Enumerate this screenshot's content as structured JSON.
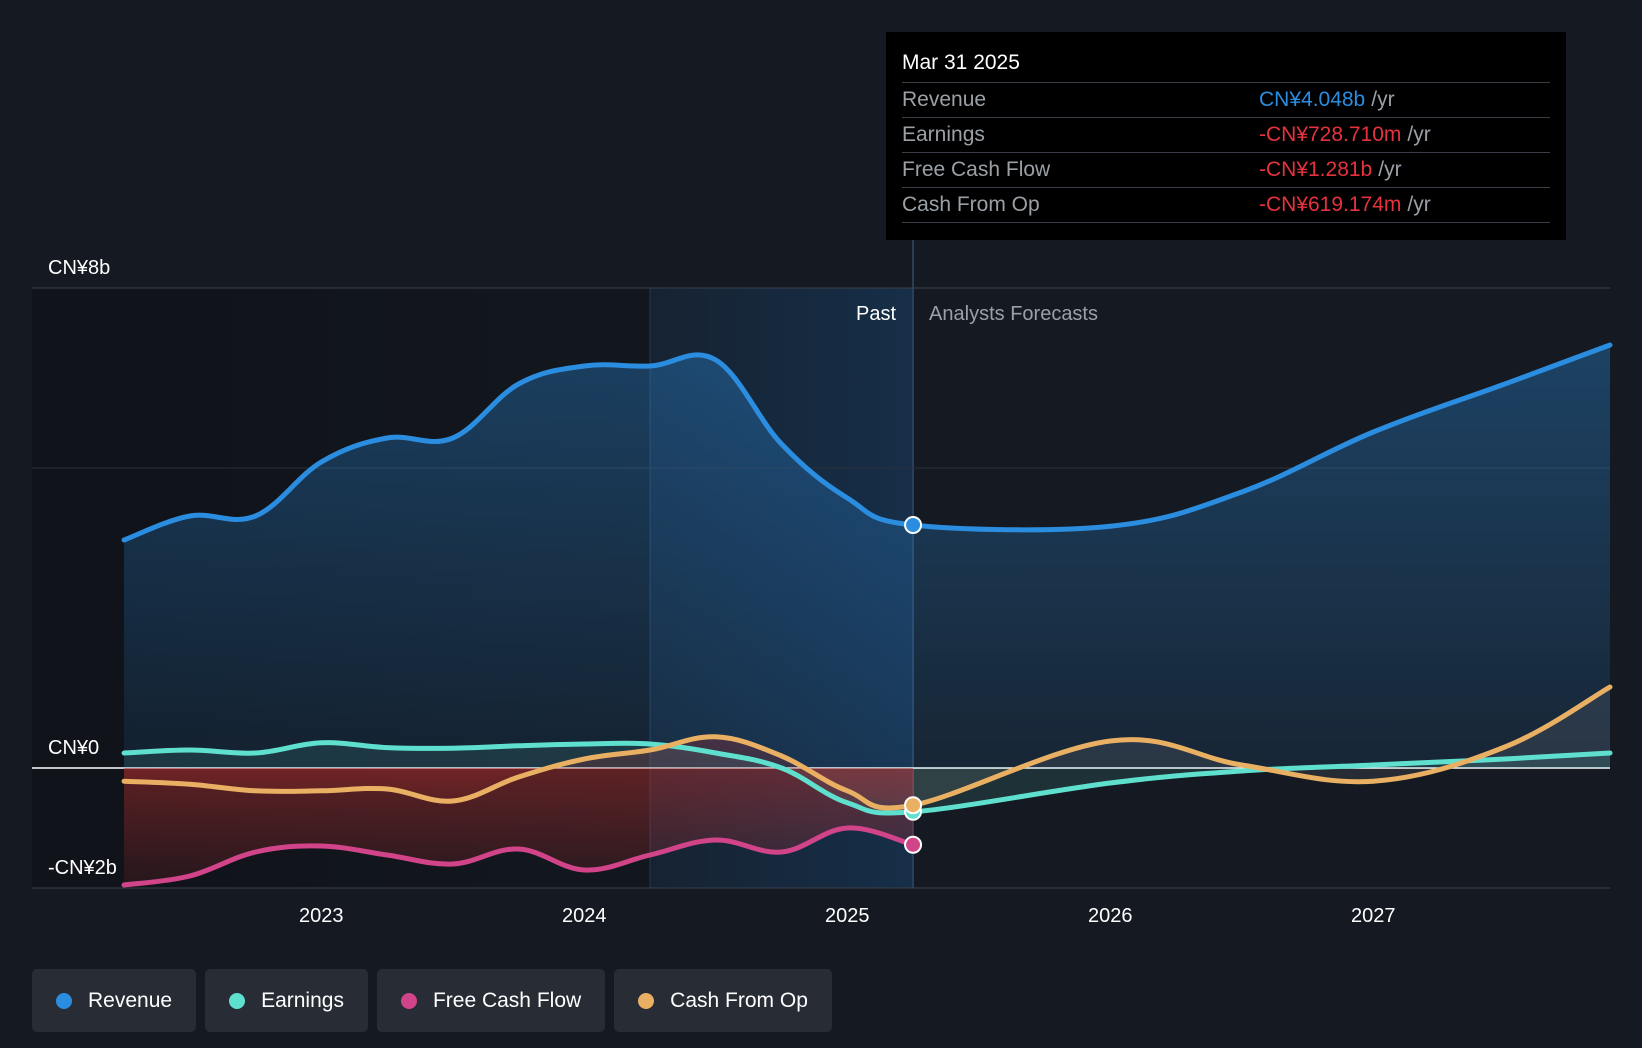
{
  "chart_data": {
    "type": "line",
    "y_unit_label": "CN¥",
    "ylim": [
      -2,
      8
    ],
    "y_ticks": [
      {
        "value": 8,
        "label": "CN¥8b"
      },
      {
        "value": 0,
        "label": "CN¥0"
      },
      {
        "value": -2,
        "label": "-CN¥2b"
      }
    ],
    "x_ticks": [
      {
        "value": 2023.0,
        "label": "2023"
      },
      {
        "value": 2024.0,
        "label": "2024"
      },
      {
        "value": 2025.0,
        "label": "2025"
      },
      {
        "value": 2026.0,
        "label": "2026"
      },
      {
        "value": 2027.0,
        "label": "2027"
      }
    ],
    "xlim": [
      2021.9,
      2027.9
    ],
    "divider_x": 2025.25,
    "highlight_start_x": 2024.25,
    "past_label": "Past",
    "forecast_label": "Analysts Forecasts",
    "series": [
      {
        "name": "Revenue",
        "color": "#2b8de0",
        "past": [
          [
            2022.25,
            3.8
          ],
          [
            2022.5,
            4.2
          ],
          [
            2022.75,
            4.2
          ],
          [
            2023.0,
            5.1
          ],
          [
            2023.25,
            5.5
          ],
          [
            2023.5,
            5.5
          ],
          [
            2023.75,
            6.4
          ],
          [
            2024.0,
            6.7
          ],
          [
            2024.25,
            6.7
          ],
          [
            2024.5,
            6.8
          ],
          [
            2024.75,
            5.4
          ],
          [
            2025.0,
            4.5
          ],
          [
            2025.25,
            4.05
          ]
        ],
        "forecast": [
          [
            2025.25,
            4.05
          ],
          [
            2026.0,
            4.03
          ],
          [
            2026.5,
            4.6
          ],
          [
            2027.0,
            5.6
          ],
          [
            2027.5,
            6.4
          ],
          [
            2027.9,
            7.05
          ]
        ]
      },
      {
        "name": "Earnings",
        "color": "#5fe0cf",
        "past": [
          [
            2022.25,
            0.25
          ],
          [
            2022.5,
            0.3
          ],
          [
            2022.75,
            0.25
          ],
          [
            2023.0,
            0.42
          ],
          [
            2023.25,
            0.34
          ],
          [
            2023.5,
            0.33
          ],
          [
            2023.75,
            0.37
          ],
          [
            2024.0,
            0.4
          ],
          [
            2024.25,
            0.4
          ],
          [
            2024.5,
            0.25
          ],
          [
            2024.75,
            0.0
          ],
          [
            2025.0,
            -0.58
          ],
          [
            2025.25,
            -0.73
          ]
        ],
        "forecast": [
          [
            2025.25,
            -0.73
          ],
          [
            2026.0,
            -0.25
          ],
          [
            2026.5,
            -0.05
          ],
          [
            2027.0,
            0.05
          ],
          [
            2027.5,
            0.15
          ],
          [
            2027.9,
            0.25
          ]
        ]
      },
      {
        "name": "Free Cash Flow",
        "color": "#d1448a",
        "past": [
          [
            2022.25,
            -1.95
          ],
          [
            2022.5,
            -1.8
          ],
          [
            2022.75,
            -1.4
          ],
          [
            2023.0,
            -1.3
          ],
          [
            2023.25,
            -1.45
          ],
          [
            2023.5,
            -1.6
          ],
          [
            2023.75,
            -1.35
          ],
          [
            2024.0,
            -1.7
          ],
          [
            2024.25,
            -1.45
          ],
          [
            2024.5,
            -1.2
          ],
          [
            2024.75,
            -1.4
          ],
          [
            2025.0,
            -1.0
          ],
          [
            2025.25,
            -1.28
          ]
        ],
        "forecast": []
      },
      {
        "name": "Cash From Op",
        "color": "#e9b063",
        "past": [
          [
            2022.25,
            -0.22
          ],
          [
            2022.5,
            -0.27
          ],
          [
            2022.75,
            -0.38
          ],
          [
            2023.0,
            -0.38
          ],
          [
            2023.25,
            -0.35
          ],
          [
            2023.5,
            -0.55
          ],
          [
            2023.75,
            -0.15
          ],
          [
            2024.0,
            0.15
          ],
          [
            2024.25,
            0.3
          ],
          [
            2024.5,
            0.52
          ],
          [
            2024.75,
            0.2
          ],
          [
            2025.0,
            -0.38
          ],
          [
            2025.25,
            -0.62
          ]
        ],
        "forecast": [
          [
            2025.25,
            -0.62
          ],
          [
            2026.0,
            0.45
          ],
          [
            2026.5,
            0.05
          ],
          [
            2027.0,
            -0.22
          ],
          [
            2027.5,
            0.35
          ],
          [
            2027.9,
            1.35
          ]
        ]
      }
    ],
    "tooltip": {
      "date": "Mar 31 2025",
      "rows": [
        {
          "name": "Revenue",
          "value": "CN¥4.048b",
          "unit": "/yr",
          "color": "#2b8de0"
        },
        {
          "name": "Earnings",
          "value": "-CN¥728.710m",
          "unit": "/yr",
          "color": "#e5323f"
        },
        {
          "name": "Free Cash Flow",
          "value": "-CN¥1.281b",
          "unit": "/yr",
          "color": "#e5323f"
        },
        {
          "name": "Cash From Op",
          "value": "-CN¥619.174m",
          "unit": "/yr",
          "color": "#e5323f"
        }
      ]
    },
    "legend": [
      {
        "name": "Revenue",
        "color": "#2b8de0"
      },
      {
        "name": "Earnings",
        "color": "#5fe0cf"
      },
      {
        "name": "Free Cash Flow",
        "color": "#d1448a"
      },
      {
        "name": "Cash From Op",
        "color": "#e9b063"
      }
    ]
  }
}
